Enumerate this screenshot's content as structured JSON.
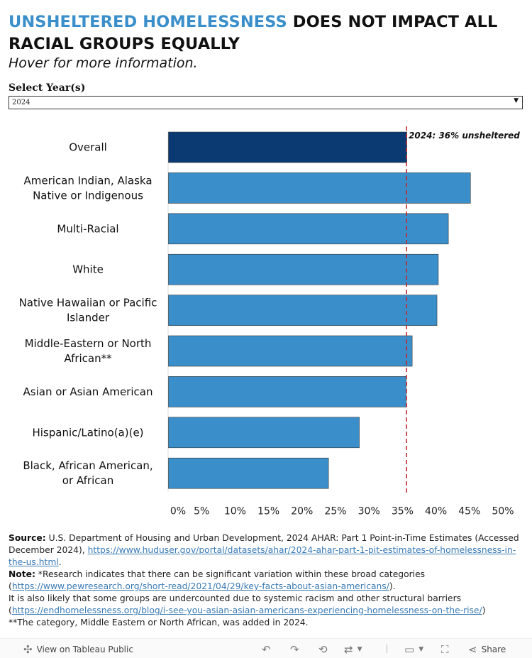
{
  "header": {
    "title_accent": "UNSHELTERED HOMELESSNESS",
    "title_rest": " DOES NOT IMPACT ALL RACIAL GROUPS EQUALLY",
    "subtitle": "Hover for more information."
  },
  "filter": {
    "label": "Select  Year(s)",
    "selected": "2024"
  },
  "colors": {
    "accent": "#3a8fcb",
    "bar_overall": "#0b3a73",
    "bar_group": "#3a8fcb",
    "reference_line": "#c0282d"
  },
  "chart_data": {
    "type": "bar",
    "orientation": "horizontal",
    "categories": [
      [
        "Overall"
      ],
      [
        "American Indian, Alaska",
        "Native or Indigenous"
      ],
      [
        "Multi-Racial"
      ],
      [
        "White"
      ],
      [
        "Native Hawaiian or Pacific",
        "Islander"
      ],
      [
        "Middle-Eastern or North",
        "African**"
      ],
      [
        "Asian or Asian American"
      ],
      [
        "Hispanic/Latino(a)(e)"
      ],
      [
        "Black, African American,",
        "or African"
      ]
    ],
    "values": [
      35.6,
      45.1,
      41.8,
      40.3,
      40.1,
      36.4,
      35.5,
      28.5,
      23.9
    ],
    "highlight_index": 0,
    "reference_line": {
      "value": 35.6,
      "label": "2024: 36% unsheltered"
    },
    "xlim": [
      0,
      50
    ],
    "xticks": [
      "0%",
      "5%",
      "10%",
      "15%",
      "20%",
      "25%",
      "30%",
      "35%",
      "40%",
      "45%",
      "50%"
    ],
    "xtick_values": [
      0,
      5,
      10,
      15,
      20,
      25,
      30,
      35,
      40,
      45,
      50
    ],
    "title": "",
    "xlabel": "",
    "ylabel": ""
  },
  "footer": {
    "source_label": "Source:",
    "source_text": " U.S. Department of Housing and Urban Development, 2024 AHAR: Part 1 Point-in-Time Estimates (Accessed December 2024), ",
    "source_link": "https://www.huduser.gov/portal/datasets/ahar/2024-ahar-part-1-pit-estimates-of-homelessness-in-the-us.html",
    "source_end": ".",
    "note_label": "Note:",
    "note_text": " *Research indicates that there can be significant variation within these broad categories (",
    "note_link": "https://www.pewresearch.org/short-read/2021/04/29/key-facts-about-asian-americans/",
    "note_end": ").",
    "note2_text": "It is also likely that some groups are undercounted due to systemic racism and other structural barriers (",
    "note2_link": "https://endhomelessness.org/blog/i-see-you-asian-asian-americans-experiencing-homelessness-on-the-rise/",
    "note2_end": ")",
    "note3_text": "**The category, Middle Eastern or North African, was added in 2024."
  },
  "toolbar": {
    "view_label": "View on Tableau Public",
    "share_label": "Share"
  }
}
